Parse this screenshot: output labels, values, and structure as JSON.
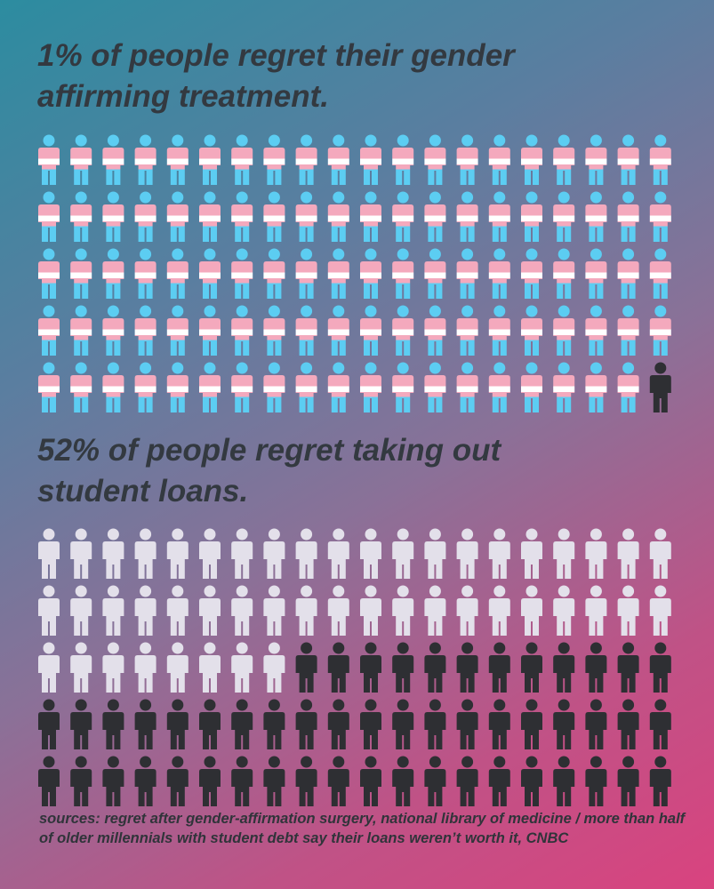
{
  "chart_data": [
    {
      "type": "waffle",
      "title": "1% of people regret their gender affirming treatment.",
      "value": 1,
      "color": "#2e2f33",
      "base": "trans-flag"
    },
    {
      "type": "waffle",
      "title": "52% of people regret taking out student loans.",
      "value": 52,
      "color": "#2e2f33",
      "base": "#e3e0ea"
    }
  ],
  "footer": "sources: regret after gender-affirmation surgery, national library of medicine / more than half of older millennials with student debt say their loans weren’t worth it, CNBC"
}
